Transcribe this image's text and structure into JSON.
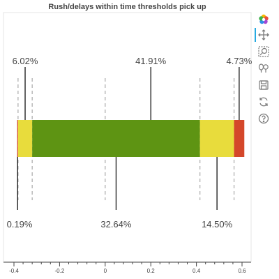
{
  "chart_data": {
    "type": "bar",
    "title": "Rush/delays within time thresholds pick up",
    "orientation": "horizontal",
    "stacked": true,
    "xlim": [
      -0.42,
      0.64
    ],
    "x_ticks": [
      -0.4,
      -0.2,
      0,
      0.2,
      0.4,
      0.6
    ],
    "x_tick_labels": [
      "-0.4",
      "-0.2",
      "0",
      "0.2",
      "0.4",
      "0.6"
    ],
    "segments": [
      {
        "start": -0.386,
        "end": -0.382,
        "value": 0.0019,
        "label": "0.19%",
        "color": "#d4472a",
        "label_side": "bottom"
      },
      {
        "start": -0.382,
        "end": -0.32,
        "value": 0.0602,
        "label": "6.02%",
        "color": "#e8dc3c",
        "label_side": "top"
      },
      {
        "start": -0.32,
        "end": 0.4155,
        "value": 0.3264,
        "label": "32.64%",
        "color": "#5e9413",
        "label_side": "bottom"
      },
      {
        "start": 0.4155,
        "end": 0.565,
        "value": 0.145,
        "label": "14.50%",
        "color": "#e8dc3c",
        "label_side": "bottom"
      },
      {
        "start": 0.565,
        "end": 0.61,
        "value": 0.0473,
        "label": "4.73%",
        "color": "#d4472a",
        "label_side": "top"
      }
    ],
    "top_annotation": {
      "label": "41.91%",
      "x": 0.2
    },
    "threshold_lines": [
      -0.382,
      -0.32,
      0,
      0.4155,
      0.565
    ],
    "grid": false
  },
  "toolbar": {
    "tools": [
      "bokeh-logo-icon",
      "pan-icon",
      "box-zoom-icon",
      "wheel-zoom-icon",
      "save-icon",
      "reset-icon",
      "help-icon"
    ]
  }
}
